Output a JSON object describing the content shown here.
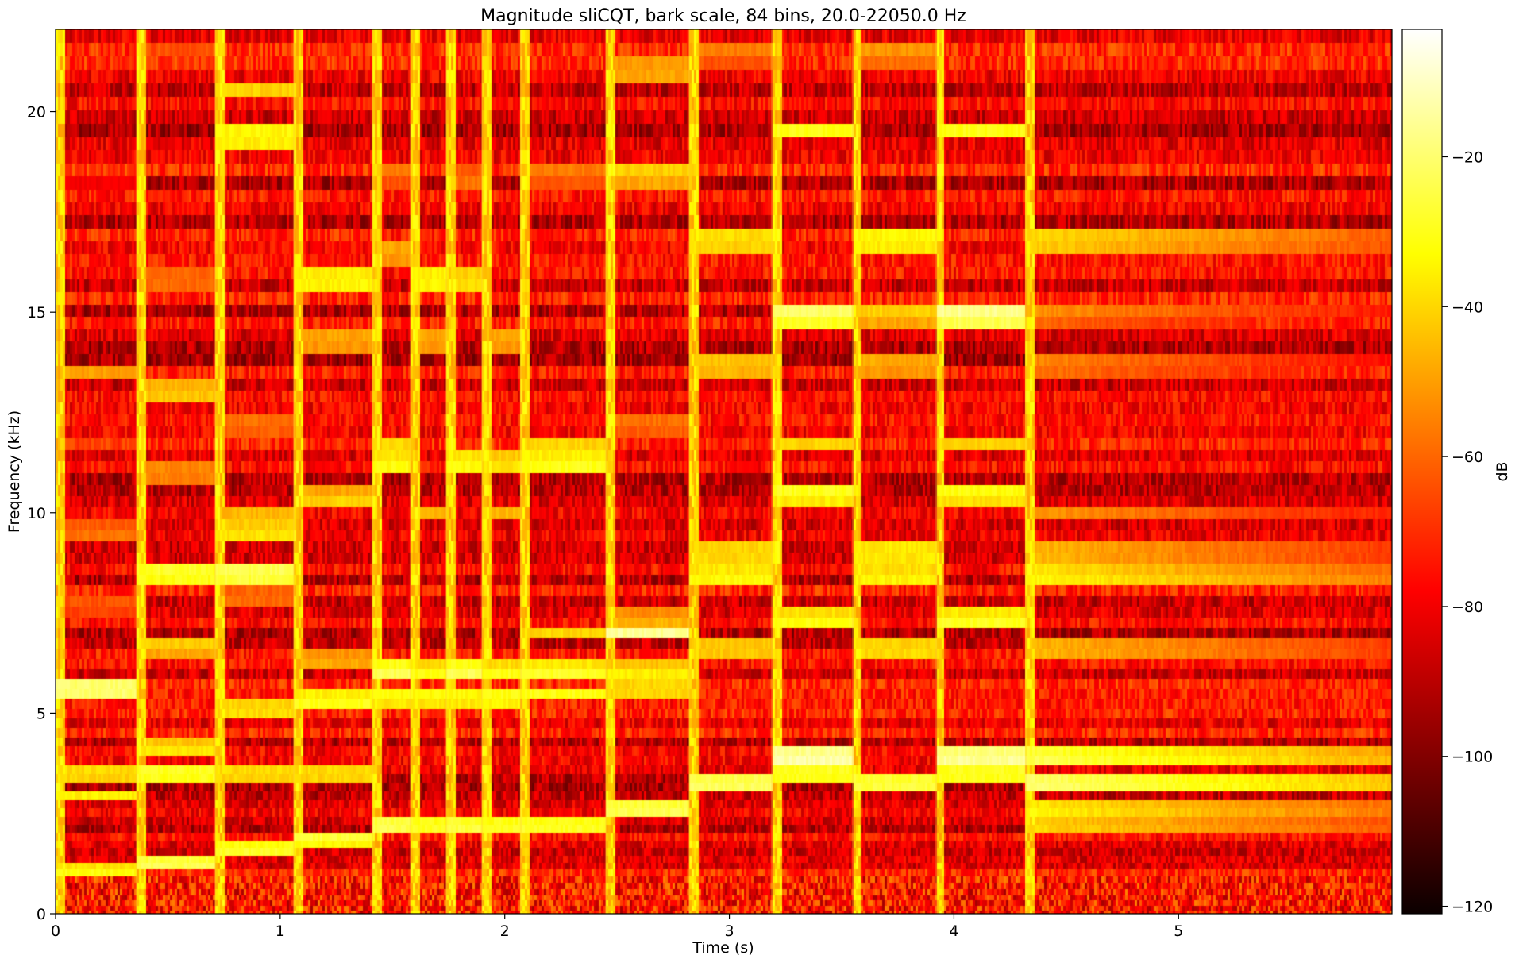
{
  "chart_data": {
    "type": "heatmap",
    "title": "Magnitude sliCQT, bark scale, 84 bins, 20.0-22050.0 Hz",
    "xlabel": "Time (s)",
    "ylabel": "Frequency (kHz)",
    "xlim": [
      0,
      5.95
    ],
    "ylim": [
      0,
      22.05
    ],
    "xticks": [
      0,
      1,
      2,
      3,
      4,
      5
    ],
    "xtick_labels": [
      "0",
      "1",
      "2",
      "3",
      "4",
      "5"
    ],
    "yticks": [
      0,
      5,
      10,
      15,
      20
    ],
    "ytick_labels": [
      "0",
      "5",
      "10",
      "15",
      "20"
    ],
    "colormap": "hot",
    "colorbar": {
      "label": "dB",
      "range": [
        -121,
        -3
      ],
      "ticks": [
        -20,
        -40,
        -60,
        -80,
        -100,
        -120
      ],
      "tick_labels": [
        "−20",
        "−40",
        "−60",
        "−80",
        "−100",
        "−120"
      ]
    },
    "onsets_s": [
      0,
      0.36,
      0.71,
      1.06,
      1.41,
      1.58,
      1.74,
      1.9,
      2.07,
      2.45,
      2.82,
      3.19,
      3.55,
      3.92,
      4.32
    ],
    "background_db": -82,
    "events": [
      {
        "t0": 0.0,
        "t1": 0.36,
        "f_khz": [
          1.05,
          2.95,
          3.5,
          5.6,
          7.7,
          9.5,
          11.7,
          13.5,
          18.5
        ],
        "peak_db": [
          -30,
          -35,
          -35,
          -15,
          -60,
          -55,
          -70,
          -50,
          -72
        ]
      },
      {
        "t0": 0.36,
        "t1": 0.71,
        "f_khz": [
          1.25,
          3.5,
          4.1,
          6.7,
          8.5,
          11.0,
          13.0,
          15.8,
          21.5
        ],
        "peak_db": [
          -20,
          -25,
          -35,
          -40,
          -25,
          -50,
          -40,
          -55,
          -65
        ]
      },
      {
        "t0": 0.71,
        "t1": 1.06,
        "f_khz": [
          1.6,
          3.5,
          5.1,
          7.9,
          8.5,
          9.5,
          10.0,
          12.2,
          19.4,
          20.5
        ],
        "peak_db": [
          -25,
          -35,
          -35,
          -55,
          -20,
          -35,
          -45,
          -55,
          -30,
          -40
        ]
      },
      {
        "t0": 1.06,
        "t1": 1.41,
        "f_khz": [
          1.9,
          3.5,
          5.3,
          6.3,
          10.3,
          14.3,
          15.8
        ],
        "peak_db": [
          -25,
          -35,
          -28,
          -45,
          -40,
          -45,
          -30
        ]
      },
      {
        "t0": 1.41,
        "t1": 1.58,
        "f_khz": [
          2.2,
          6.0,
          5.4,
          11.2,
          11.7,
          16.5,
          18.5
        ],
        "peak_db": [
          -20,
          -22,
          -30,
          -30,
          -40,
          -45,
          -55
        ]
      },
      {
        "t0": 1.58,
        "t1": 1.74,
        "f_khz": [
          2.2,
          5.4,
          6.0,
          10.0,
          14.3,
          15.8
        ],
        "peak_db": [
          -25,
          -30,
          -30,
          -45,
          -45,
          -30
        ]
      },
      {
        "t0": 1.74,
        "t1": 1.9,
        "f_khz": [
          2.2,
          6.0,
          5.4,
          11.2,
          15.8,
          18.3
        ],
        "peak_db": [
          -22,
          -22,
          -30,
          -30,
          -35,
          -55
        ]
      },
      {
        "t0": 1.9,
        "t1": 2.07,
        "f_khz": [
          2.2,
          5.4,
          6.0,
          10.0,
          11.2,
          14.3
        ],
        "peak_db": [
          -25,
          -28,
          -30,
          -45,
          -35,
          -45
        ]
      },
      {
        "t0": 2.07,
        "t1": 2.45,
        "f_khz": [
          2.2,
          5.5,
          6.0,
          7.0,
          11.2,
          11.7,
          18.5
        ],
        "peak_db": [
          -25,
          -30,
          -28,
          -40,
          -28,
          -40,
          -55
        ]
      },
      {
        "t0": 2.45,
        "t1": 2.82,
        "f_khz": [
          2.6,
          5.6,
          6.0,
          7.0,
          7.3,
          12.2,
          18.5,
          21.0
        ],
        "peak_db": [
          -20,
          -35,
          -35,
          -15,
          -45,
          -55,
          -40,
          -45
        ]
      },
      {
        "t0": 2.82,
        "t1": 3.19,
        "f_khz": [
          3.25,
          6.6,
          8.4,
          9.0,
          13.7,
          16.8,
          21.5
        ],
        "peak_db": [
          -18,
          -38,
          -30,
          -35,
          -40,
          -35,
          -55
        ]
      },
      {
        "t0": 3.19,
        "t1": 3.55,
        "f_khz": [
          3.9,
          3.5,
          7.3,
          10.5,
          11.7,
          15.0,
          19.5
        ],
        "peak_db": [
          -10,
          -25,
          -30,
          -28,
          -40,
          -20,
          -30
        ]
      },
      {
        "t0": 3.55,
        "t1": 3.92,
        "f_khz": [
          3.25,
          6.6,
          8.4,
          9.0,
          13.7,
          15.0,
          16.8,
          21.5
        ],
        "peak_db": [
          -22,
          -35,
          -32,
          -32,
          -45,
          -40,
          -30,
          -50
        ]
      },
      {
        "t0": 3.92,
        "t1": 4.32,
        "f_khz": [
          3.9,
          3.5,
          7.3,
          10.5,
          11.7,
          15.0,
          19.5
        ],
        "peak_db": [
          -12,
          -25,
          -28,
          -30,
          -40,
          -15,
          -30
        ]
      },
      {
        "t0": 4.32,
        "t1": 5.95,
        "f_khz": [
          3.25,
          3.9,
          2.6,
          2.2,
          6.6,
          8.4,
          9.0,
          10.0,
          13.7,
          15.0,
          16.8
        ],
        "peak_db": [
          -15,
          -20,
          -30,
          -35,
          -40,
          -30,
          -40,
          -50,
          -50,
          -50,
          -35
        ]
      }
    ]
  }
}
